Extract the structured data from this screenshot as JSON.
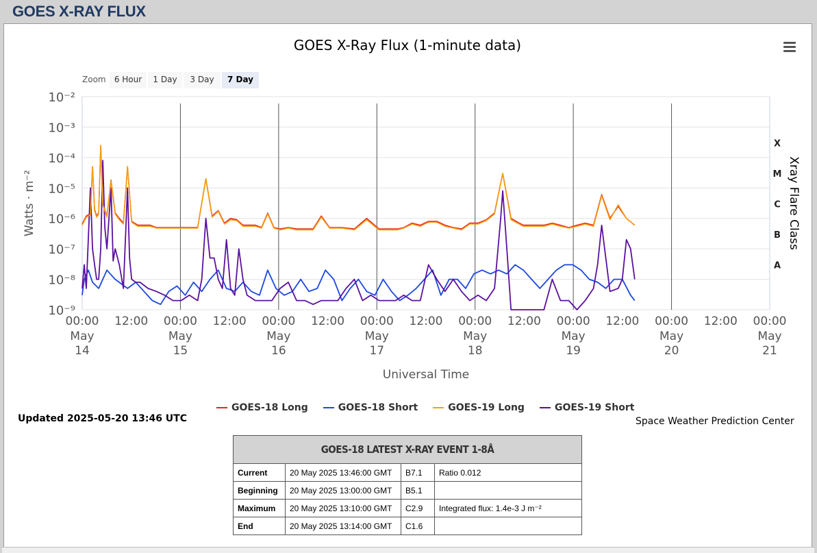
{
  "page": {
    "heading": "GOES X-RAY FLUX"
  },
  "zoom": {
    "label": "Zoom",
    "buttons": [
      "6 Hour",
      "1 Day",
      "3 Day",
      "7 Day"
    ],
    "active": "7 Day"
  },
  "chart_data": {
    "type": "line",
    "title": "GOES X-Ray Flux (1-minute data)",
    "xlabel": "Universal Time",
    "ylabel": "Watts · m⁻²",
    "ylabel_right": "Xray Flare Class",
    "y_scale": "log",
    "ylim": [
      1e-09,
      0.01
    ],
    "y_ticks": [
      "10⁻²",
      "10⁻³",
      "10⁻⁴",
      "10⁻⁵",
      "10⁻⁶",
      "10⁻⁷",
      "10⁻⁸",
      "10⁻⁹"
    ],
    "flare_classes": [
      "X",
      "M",
      "C",
      "B",
      "A"
    ],
    "x_range": [
      "2025-05-14 00:00",
      "2025-05-21 00:00"
    ],
    "x_ticks": [
      {
        "time": "00:00",
        "date": "May",
        "day": "14"
      },
      {
        "time": "12:00"
      },
      {
        "time": "00:00",
        "date": "May",
        "day": "15"
      },
      {
        "time": "12:00"
      },
      {
        "time": "00:00",
        "date": "May",
        "day": "16"
      },
      {
        "time": "12:00"
      },
      {
        "time": "00:00",
        "date": "May",
        "day": "17"
      },
      {
        "time": "12:00"
      },
      {
        "time": "00:00",
        "date": "May",
        "day": "18"
      },
      {
        "time": "12:00"
      },
      {
        "time": "00:00",
        "date": "May",
        "day": "19"
      },
      {
        "time": "12:00"
      },
      {
        "time": "00:00",
        "date": "May",
        "day": "20"
      },
      {
        "time": "12:00"
      },
      {
        "time": "00:00",
        "date": "May",
        "day": "21"
      }
    ],
    "grid": true,
    "legend_position": "bottom",
    "series": [
      {
        "name": "GOES-18 Long",
        "color": "#e8231b",
        "x": [
          0,
          2,
          4,
          5,
          6,
          7,
          8,
          9,
          10,
          12,
          14,
          16,
          18,
          20,
          22,
          24,
          27,
          30,
          33,
          36,
          40,
          44,
          48,
          52,
          56,
          60,
          63,
          66,
          69,
          72,
          75,
          78,
          81,
          84,
          87,
          90,
          93,
          96,
          100,
          104,
          108,
          112,
          116,
          120,
          126,
          132,
          138,
          144,
          147,
          150,
          153,
          156,
          160,
          164,
          168,
          172,
          176,
          180,
          184,
          188,
          192,
          196,
          200,
          204,
          208,
          212,
          214,
          216,
          220,
          224,
          228,
          232,
          236,
          240,
          244,
          248,
          252,
          256,
          260,
          264,
          268
        ],
        "y": [
          6.5e-07,
          1.2e-06,
          1.4e-06,
          5e-05,
          2e-06,
          1.2e-06,
          1.5e-06,
          0.00025,
          3e-06,
          1.2e-06,
          1.8e-05,
          1.5e-06,
          1e-06,
          7e-07,
          5e-05,
          8e-07,
          6e-07,
          6e-07,
          6e-07,
          5e-07,
          5e-07,
          5e-07,
          5e-07,
          5e-07,
          5e-07,
          2e-05,
          1.2e-06,
          1.8e-06,
          7e-07,
          1e-06,
          9e-07,
          6e-07,
          6e-07,
          6e-07,
          5e-07,
          1.5e-06,
          5e-07,
          4.5e-07,
          5e-07,
          4.5e-07,
          4.5e-07,
          4.5e-07,
          1.2e-06,
          5e-07,
          5e-07,
          4.5e-07,
          1e-06,
          4.5e-07,
          4.5e-07,
          4.5e-07,
          4.5e-07,
          5e-07,
          7e-07,
          6e-07,
          8e-07,
          8e-07,
          6e-07,
          5e-07,
          4.5e-07,
          7e-07,
          7e-07,
          9e-07,
          1.5e-06,
          3e-05,
          1e-06,
          7e-07,
          6e-07,
          6e-07,
          6e-07,
          6e-07,
          7e-07,
          6e-07,
          5e-07,
          6e-07,
          7e-07,
          6e-07,
          6e-06,
          1e-06,
          2.5e-06,
          1e-06,
          6e-07
        ]
      },
      {
        "name": "GOES-18 Short",
        "color": "#1b47e0",
        "x": [
          0,
          1,
          3,
          5,
          8,
          12,
          16,
          22,
          26,
          30,
          34,
          38,
          42,
          46,
          50,
          54,
          58,
          62,
          66,
          70,
          74,
          78,
          82,
          86,
          90,
          94,
          98,
          102,
          106,
          110,
          114,
          118,
          122,
          126,
          130,
          134,
          138,
          142,
          146,
          150,
          154,
          158,
          162,
          166,
          170,
          174,
          178,
          182,
          186,
          190,
          194,
          198,
          202,
          206,
          210,
          214,
          218,
          222,
          226,
          230,
          234,
          238,
          242,
          246,
          250,
          254,
          258,
          262,
          266,
          268
        ],
        "y": [
          3e-09,
          1e-08,
          2e-08,
          8e-09,
          5e-09,
          2e-08,
          1e-08,
          5e-09,
          8e-09,
          4e-09,
          2e-09,
          1.5e-09,
          4e-09,
          6e-09,
          3e-09,
          8e-09,
          4e-09,
          1e-08,
          2e-08,
          5e-09,
          4e-09,
          8e-09,
          4e-09,
          3e-09,
          2e-08,
          5e-09,
          3e-09,
          4e-09,
          1e-08,
          4e-09,
          5e-09,
          2e-08,
          1e-08,
          2e-09,
          5e-09,
          1e-08,
          4e-09,
          3e-09,
          1e-08,
          4e-09,
          2e-09,
          3e-09,
          5e-09,
          1e-08,
          2e-08,
          3e-09,
          1e-08,
          1e-08,
          5e-09,
          1.5e-08,
          2e-08,
          1.5e-08,
          2e-08,
          1.5e-08,
          3e-08,
          2e-08,
          1e-08,
          5e-09,
          1e-08,
          2e-08,
          3e-08,
          3e-08,
          2e-08,
          1e-08,
          8e-09,
          5e-09,
          1e-08,
          1e-08,
          3e-09,
          2e-09
        ]
      },
      {
        "name": "GOES-19 Long",
        "color": "#f5a00f",
        "x": [
          0,
          2,
          4,
          5,
          6,
          7,
          8,
          9,
          10,
          12,
          14,
          16,
          18,
          20,
          22,
          24,
          27,
          30,
          33,
          36,
          40,
          44,
          48,
          52,
          56,
          60,
          63,
          66,
          69,
          72,
          75,
          78,
          81,
          84,
          87,
          90,
          93,
          96,
          100,
          104,
          108,
          112,
          116,
          120,
          126,
          132,
          138,
          144,
          147,
          150,
          153,
          156,
          160,
          164,
          168,
          172,
          176,
          180,
          184,
          188,
          192,
          196,
          200,
          204,
          208,
          212,
          214,
          216,
          220,
          224,
          228,
          232,
          236,
          240,
          244,
          248,
          252,
          256,
          260,
          264,
          268
        ],
        "y": [
          6e-07,
          1.1e-06,
          1.3e-06,
          5e-05,
          1.8e-06,
          1.1e-06,
          1.4e-06,
          0.00025,
          2.8e-06,
          1.1e-06,
          1.7e-05,
          1.4e-06,
          9e-07,
          6.5e-07,
          5e-05,
          7.5e-07,
          5.5e-07,
          5.5e-07,
          5.5e-07,
          4.8e-07,
          4.8e-07,
          4.8e-07,
          4.8e-07,
          4.8e-07,
          4.8e-07,
          2e-05,
          1.1e-06,
          1.7e-06,
          6.5e-07,
          9e-07,
          8.5e-07,
          5.5e-07,
          5.5e-07,
          5.5e-07,
          4.8e-07,
          1.4e-06,
          4.8e-07,
          4.2e-07,
          4.8e-07,
          4.2e-07,
          4.2e-07,
          4.2e-07,
          1.1e-06,
          4.8e-07,
          4.8e-07,
          4.2e-07,
          9e-07,
          4.2e-07,
          4.2e-07,
          4.2e-07,
          4.2e-07,
          4.8e-07,
          6.5e-07,
          5.5e-07,
          7.5e-07,
          7.5e-07,
          5.5e-07,
          4.8e-07,
          4.2e-07,
          6.5e-07,
          6.5e-07,
          8.5e-07,
          1.4e-06,
          3e-05,
          9e-07,
          6.5e-07,
          5.5e-07,
          5.5e-07,
          5.5e-07,
          5.5e-07,
          6.5e-07,
          5.5e-07,
          4.8e-07,
          5.5e-07,
          6.5e-07,
          5.5e-07,
          5.5e-06,
          9e-07,
          2.8e-06,
          1e-06,
          6e-07
        ]
      },
      {
        "name": "GOES-19 Short",
        "color": "#5b0f9e",
        "x": [
          0,
          1,
          2,
          4,
          5,
          6,
          7,
          8,
          9,
          10,
          11,
          12,
          14,
          15,
          16,
          18,
          20,
          22,
          23,
          24,
          26,
          28,
          32,
          36,
          40,
          44,
          48,
          52,
          56,
          58,
          60,
          62,
          64,
          66,
          68,
          70,
          72,
          74,
          76,
          78,
          80,
          84,
          88,
          92,
          96,
          100,
          104,
          108,
          112,
          116,
          120,
          124,
          128,
          132,
          136,
          140,
          144,
          148,
          152,
          156,
          160,
          164,
          168,
          172,
          176,
          180,
          184,
          188,
          192,
          196,
          200,
          203,
          204,
          206,
          208,
          212,
          216,
          220,
          224,
          228,
          232,
          236,
          240,
          244,
          248,
          250,
          252,
          256,
          260,
          262,
          264,
          266,
          268
        ],
        "y": [
          5e-09,
          3e-08,
          5e-09,
          1e-05,
          1e-07,
          3e-08,
          1e-08,
          1e-08,
          1e-07,
          8e-05,
          5e-07,
          1e-07,
          1e-05,
          4e-08,
          1e-07,
          3e-08,
          5e-09,
          1e-05,
          5e-08,
          1e-08,
          8e-09,
          8e-09,
          5e-09,
          4e-09,
          3e-09,
          2e-09,
          2e-09,
          3e-09,
          2e-09,
          1e-08,
          1e-06,
          5e-08,
          5e-08,
          1e-08,
          5e-09,
          2e-07,
          5e-09,
          3e-09,
          1e-07,
          1e-08,
          3e-09,
          2e-09,
          2e-09,
          2e-09,
          5e-09,
          8e-09,
          2e-09,
          2e-09,
          1.5e-09,
          2e-09,
          2e-09,
          2e-09,
          5e-09,
          1e-08,
          2e-09,
          3e-09,
          2e-09,
          2e-09,
          2e-09,
          3e-09,
          2e-09,
          2e-09,
          3e-08,
          1e-08,
          4e-09,
          1e-08,
          4e-09,
          2e-09,
          3e-09,
          2e-09,
          5e-09,
          1e-06,
          8e-06,
          1e-07,
          1e-09,
          1e-09,
          1e-09,
          1e-09,
          1e-09,
          1e-08,
          2e-09,
          2e-09,
          1e-09,
          2e-09,
          5e-09,
          3e-08,
          6e-07,
          4e-09,
          5e-09,
          1e-08,
          2e-07,
          1e-07,
          1e-08
        ]
      }
    ]
  },
  "footer": {
    "updated": "Updated 2025-05-20 13:46 UTC",
    "credit": "Space Weather Prediction Center"
  },
  "event_table": {
    "title": "GOES-18 LATEST X-RAY EVENT 1-8Å",
    "rows": [
      {
        "label": "Current",
        "time": "20 May 2025 13:46:00 GMT",
        "class": "B7.1",
        "note": "Ratio 0.012"
      },
      {
        "label": "Beginning",
        "time": "20 May 2025 13:00:00 GMT",
        "class": "B5.1",
        "note": ""
      },
      {
        "label": "Maximum",
        "time": "20 May 2025 13:10:00 GMT",
        "class": "C2.9",
        "note": "Integrated flux: 1.4e-3 J m⁻²"
      },
      {
        "label": "End",
        "time": "20 May 2025 13:14:00 GMT",
        "class": "C1.6",
        "note": ""
      }
    ]
  }
}
